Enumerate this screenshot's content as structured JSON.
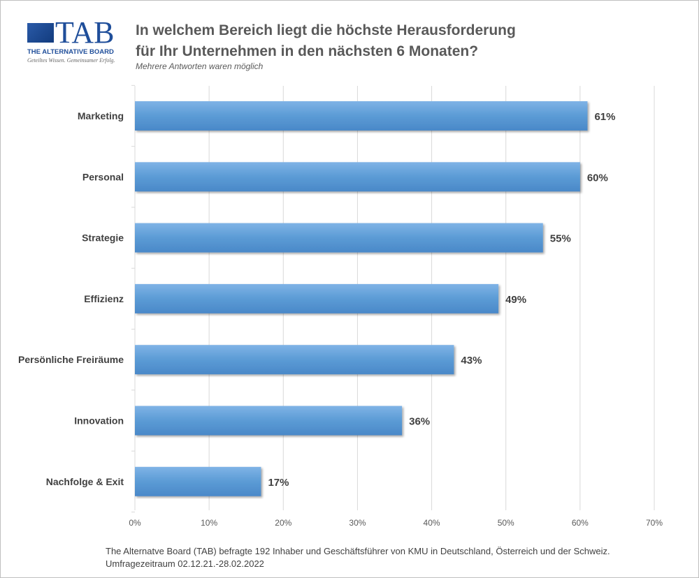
{
  "logo": {
    "brand": "TAB",
    "name": "THE ALTERNATIVE BOARD",
    "tagline": "Geteiltes Wissen. Gemeinsamer Erfolg."
  },
  "title_line1": "In welchem Bereich liegt die höchste Herausforderung",
  "title_line2": "für Ihr Unternehmen in den nächsten 6 Monaten?",
  "subtitle": "Mehrere Antworten waren möglich",
  "footer_line1": "The Alternatve Board  (TAB) befragte 192 Inhaber und Geschäftsführer von KMU in Deutschland, Österreich und der Schweiz.",
  "footer_line2": "Umfragezeitraum 02.12.21.-28.02.2022",
  "chart_data": {
    "type": "bar",
    "orientation": "horizontal",
    "categories": [
      "Marketing",
      "Personal",
      "Strategie",
      "Effizienz",
      "Persönliche Freiräume",
      "Innovation",
      "Nachfolge  & Exit"
    ],
    "values": [
      61,
      60,
      55,
      49,
      43,
      36,
      17
    ],
    "labels": [
      "61%",
      "60%",
      "55%",
      "49%",
      "43%",
      "36%",
      "17%"
    ],
    "xlim": [
      0,
      70
    ],
    "xticks": [
      "0%",
      "10%",
      "20%",
      "30%",
      "40%",
      "50%",
      "60%",
      "70%"
    ],
    "grid": true,
    "bar_color": "#5b9bd5"
  }
}
